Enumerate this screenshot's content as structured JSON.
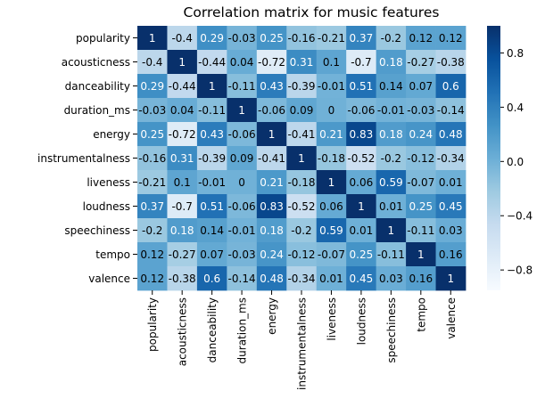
{
  "chart_data": {
    "type": "heatmap",
    "title": "Correlation matrix for music features",
    "xlabel": "",
    "ylabel": "",
    "labels": [
      "popularity",
      "acousticness",
      "danceability",
      "duration_ms",
      "energy",
      "instrumentalness",
      "liveness",
      "loudness",
      "speechiness",
      "tempo",
      "valence"
    ],
    "matrix": [
      [
        1,
        -0.4,
        0.29,
        -0.03,
        0.25,
        -0.16,
        -0.21,
        0.37,
        -0.2,
        0.12,
        0.12
      ],
      [
        -0.4,
        1,
        -0.44,
        0.04,
        -0.72,
        0.31,
        0.1,
        -0.7,
        0.18,
        -0.27,
        -0.38
      ],
      [
        0.29,
        -0.44,
        1,
        -0.11,
        0.43,
        -0.39,
        -0.01,
        0.51,
        0.14,
        0.07,
        0.6
      ],
      [
        -0.03,
        0.04,
        -0.11,
        1,
        -0.06,
        0.09,
        0,
        -0.06,
        -0.01,
        -0.03,
        -0.14
      ],
      [
        0.25,
        -0.72,
        0.43,
        -0.06,
        1,
        -0.41,
        0.21,
        0.83,
        0.18,
        0.24,
        0.48
      ],
      [
        -0.16,
        0.31,
        -0.39,
        0.09,
        -0.41,
        1,
        -0.18,
        -0.52,
        -0.2,
        -0.12,
        -0.34
      ],
      [
        -0.21,
        0.1,
        -0.01,
        0,
        0.21,
        -0.18,
        1,
        0.06,
        0.59,
        -0.07,
        0.01
      ],
      [
        0.37,
        -0.7,
        0.51,
        -0.06,
        0.83,
        -0.52,
        0.06,
        1,
        0.01,
        0.25,
        0.45
      ],
      [
        -0.2,
        0.18,
        0.14,
        -0.01,
        0.18,
        -0.2,
        0.59,
        0.01,
        1,
        -0.11,
        0.03
      ],
      [
        0.12,
        -0.27,
        0.07,
        -0.03,
        0.24,
        -0.12,
        -0.07,
        0.25,
        -0.11,
        1,
        0.16
      ],
      [
        0.12,
        -0.38,
        0.6,
        -0.14,
        0.48,
        -0.34,
        0.01,
        0.45,
        0.03,
        0.16,
        1
      ]
    ],
    "annotations": true,
    "colormap": "Blues",
    "colorbar": {
      "vmin": -0.95,
      "vmax": 1.0,
      "ticks": [
        0.8,
        0.4,
        0.0,
        -0.4,
        -0.8
      ],
      "tick_labels": [
        "0.8",
        "0.4",
        "0.0",
        "−0.4",
        "−0.8"
      ]
    },
    "colors": {
      "low": "#f7fbff",
      "high": "#08306b",
      "text_on_dark": "#ffffff",
      "text_on_light": "#000000"
    }
  }
}
